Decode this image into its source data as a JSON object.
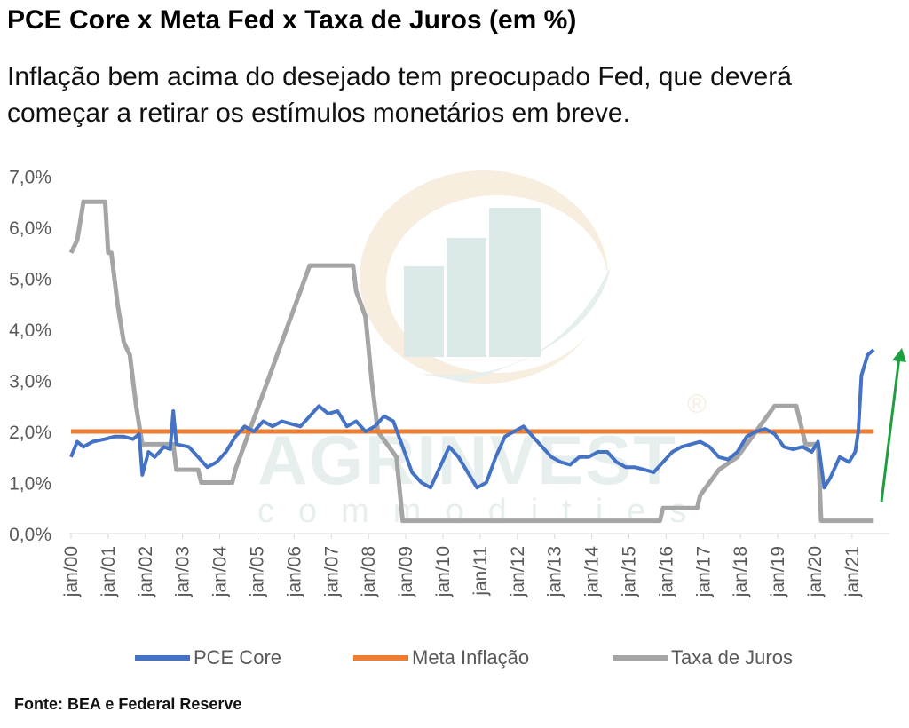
{
  "chart_data": {
    "type": "line",
    "title": "PCE Core x Meta Fed x Taxa de Juros (em %)",
    "subtitle": "Inflação bem acima do desejado tem preocupado Fed, que deverá começar a retirar os estímulos monetários em breve.",
    "source": "Fonte: BEA  e Federal Reserve",
    "ylim": [
      0,
      7
    ],
    "y_ticks": [
      "0,0%",
      "1,0%",
      "2,0%",
      "3,0%",
      "4,0%",
      "5,0%",
      "6,0%",
      "7,0%"
    ],
    "x_ticks": [
      "jan/00",
      "jan/01",
      "jan/02",
      "jan/03",
      "jan/04",
      "jan/05",
      "jan/06",
      "jan/07",
      "jan/08",
      "jan/09",
      "jan/10",
      "jan/11",
      "jan/12",
      "jan/13",
      "jan/14",
      "jan/15",
      "jan/16",
      "jan/17",
      "jan/18",
      "jan/19",
      "jan/20",
      "jan/21"
    ],
    "grid": false,
    "legend_position": "bottom",
    "series": [
      {
        "name": "PCE Core",
        "color": "#4472C4",
        "points": [
          [
            "2000-01",
            1.5
          ],
          [
            "2000-03",
            1.8
          ],
          [
            "2000-05",
            1.7
          ],
          [
            "2000-08",
            1.8
          ],
          [
            "2000-12",
            1.85
          ],
          [
            "2001-03",
            1.9
          ],
          [
            "2001-06",
            1.9
          ],
          [
            "2001-09",
            1.85
          ],
          [
            "2001-11",
            1.95
          ],
          [
            "2001-12",
            1.15
          ],
          [
            "2002-02",
            1.6
          ],
          [
            "2002-04",
            1.5
          ],
          [
            "2002-07",
            1.7
          ],
          [
            "2002-09",
            1.65
          ],
          [
            "2002-10",
            2.4
          ],
          [
            "2002-11",
            1.75
          ],
          [
            "2003-03",
            1.7
          ],
          [
            "2003-06",
            1.5
          ],
          [
            "2003-09",
            1.3
          ],
          [
            "2003-12",
            1.4
          ],
          [
            "2004-03",
            1.6
          ],
          [
            "2004-06",
            1.9
          ],
          [
            "2004-09",
            2.1
          ],
          [
            "2004-12",
            2.0
          ],
          [
            "2005-03",
            2.2
          ],
          [
            "2005-06",
            2.1
          ],
          [
            "2005-09",
            2.2
          ],
          [
            "2005-12",
            2.15
          ],
          [
            "2006-03",
            2.1
          ],
          [
            "2006-06",
            2.3
          ],
          [
            "2006-09",
            2.5
          ],
          [
            "2006-12",
            2.35
          ],
          [
            "2007-03",
            2.4
          ],
          [
            "2007-06",
            2.1
          ],
          [
            "2007-09",
            2.2
          ],
          [
            "2007-12",
            2.0
          ],
          [
            "2008-03",
            2.1
          ],
          [
            "2008-06",
            2.3
          ],
          [
            "2008-09",
            2.2
          ],
          [
            "2008-12",
            1.7
          ],
          [
            "2009-03",
            1.2
          ],
          [
            "2009-06",
            1.0
          ],
          [
            "2009-09",
            0.9
          ],
          [
            "2009-12",
            1.3
          ],
          [
            "2010-03",
            1.7
          ],
          [
            "2010-06",
            1.5
          ],
          [
            "2010-09",
            1.2
          ],
          [
            "2010-12",
            0.9
          ],
          [
            "2011-03",
            1.0
          ],
          [
            "2011-06",
            1.5
          ],
          [
            "2011-09",
            1.9
          ],
          [
            "2011-12",
            2.0
          ],
          [
            "2012-03",
            2.1
          ],
          [
            "2012-06",
            1.9
          ],
          [
            "2012-09",
            1.7
          ],
          [
            "2012-12",
            1.5
          ],
          [
            "2013-03",
            1.4
          ],
          [
            "2013-06",
            1.35
          ],
          [
            "2013-09",
            1.5
          ],
          [
            "2013-12",
            1.5
          ],
          [
            "2014-03",
            1.6
          ],
          [
            "2014-06",
            1.6
          ],
          [
            "2014-09",
            1.4
          ],
          [
            "2014-12",
            1.3
          ],
          [
            "2015-03",
            1.3
          ],
          [
            "2015-06",
            1.25
          ],
          [
            "2015-09",
            1.2
          ],
          [
            "2015-12",
            1.4
          ],
          [
            "2016-03",
            1.6
          ],
          [
            "2016-06",
            1.7
          ],
          [
            "2016-09",
            1.75
          ],
          [
            "2016-12",
            1.8
          ],
          [
            "2017-03",
            1.7
          ],
          [
            "2017-06",
            1.5
          ],
          [
            "2017-09",
            1.45
          ],
          [
            "2017-12",
            1.6
          ],
          [
            "2018-03",
            1.9
          ],
          [
            "2018-06",
            2.0
          ],
          [
            "2018-09",
            2.05
          ],
          [
            "2018-12",
            1.95
          ],
          [
            "2019-03",
            1.7
          ],
          [
            "2019-06",
            1.65
          ],
          [
            "2019-09",
            1.7
          ],
          [
            "2019-12",
            1.6
          ],
          [
            "2020-02",
            1.8
          ],
          [
            "2020-04",
            0.9
          ],
          [
            "2020-06",
            1.1
          ],
          [
            "2020-09",
            1.5
          ],
          [
            "2020-12",
            1.4
          ],
          [
            "2021-02",
            1.6
          ],
          [
            "2021-03",
            2.0
          ],
          [
            "2021-04",
            3.1
          ],
          [
            "2021-06",
            3.5
          ],
          [
            "2021-08",
            3.6
          ]
        ]
      },
      {
        "name": "Meta Inflação",
        "color": "#ED7D31",
        "points": [
          [
            "2000-01",
            2.0
          ],
          [
            "2021-08",
            2.0
          ]
        ]
      },
      {
        "name": "Taxa de Juros",
        "color": "#A5A5A5",
        "points": [
          [
            "2000-01",
            5.5
          ],
          [
            "2000-03",
            5.75
          ],
          [
            "2000-05",
            6.5
          ],
          [
            "2000-12",
            6.5
          ],
          [
            "2001-01",
            5.5
          ],
          [
            "2001-02",
            5.5
          ],
          [
            "2001-04",
            4.5
          ],
          [
            "2001-06",
            3.75
          ],
          [
            "2001-08",
            3.5
          ],
          [
            "2001-10",
            2.5
          ],
          [
            "2001-12",
            1.75
          ],
          [
            "2002-10",
            1.75
          ],
          [
            "2002-11",
            1.25
          ],
          [
            "2003-06",
            1.25
          ],
          [
            "2003-07",
            1.0
          ],
          [
            "2004-05",
            1.0
          ],
          [
            "2004-06",
            1.25
          ],
          [
            "2004-12",
            2.25
          ],
          [
            "2005-06",
            3.25
          ],
          [
            "2005-12",
            4.25
          ],
          [
            "2006-06",
            5.25
          ],
          [
            "2007-08",
            5.25
          ],
          [
            "2007-09",
            4.75
          ],
          [
            "2007-12",
            4.25
          ],
          [
            "2008-02",
            3.0
          ],
          [
            "2008-04",
            2.0
          ],
          [
            "2008-10",
            1.5
          ],
          [
            "2008-12",
            0.25
          ],
          [
            "2015-11",
            0.25
          ],
          [
            "2015-12",
            0.5
          ],
          [
            "2016-11",
            0.5
          ],
          [
            "2016-12",
            0.75
          ],
          [
            "2017-03",
            1.0
          ],
          [
            "2017-06",
            1.25
          ],
          [
            "2017-12",
            1.5
          ],
          [
            "2018-03",
            1.75
          ],
          [
            "2018-06",
            2.0
          ],
          [
            "2018-09",
            2.25
          ],
          [
            "2018-12",
            2.5
          ],
          [
            "2019-07",
            2.5
          ],
          [
            "2019-08",
            2.25
          ],
          [
            "2019-09",
            2.0
          ],
          [
            "2019-10",
            1.75
          ],
          [
            "2020-02",
            1.75
          ],
          [
            "2020-03",
            0.25
          ],
          [
            "2021-08",
            0.25
          ]
        ]
      }
    ],
    "annotation": "green upward arrow after the last PCE Core value"
  },
  "watermark": {
    "brand_text": "AGRINVEST",
    "tagline": "commodities",
    "registered": "®"
  }
}
